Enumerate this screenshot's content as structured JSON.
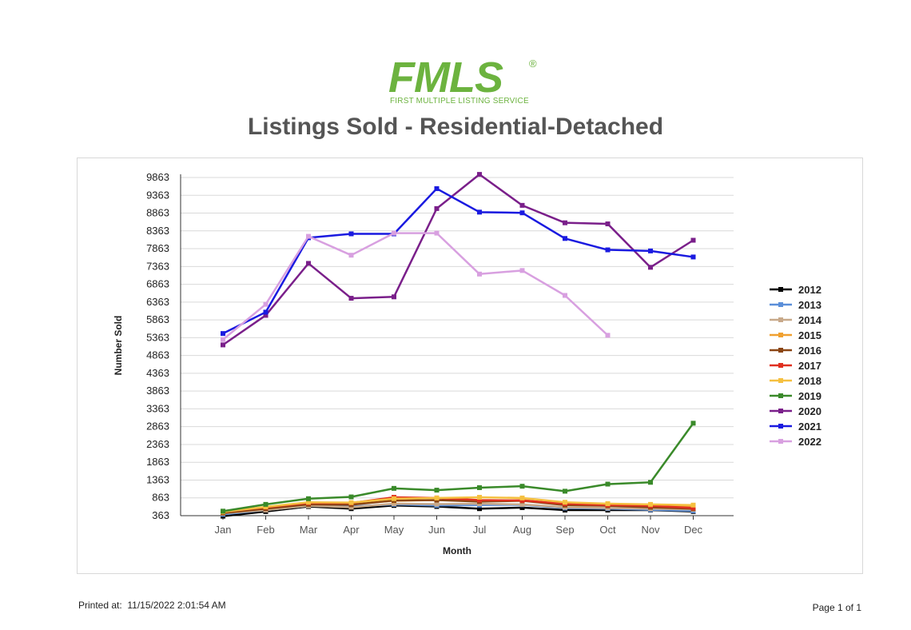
{
  "logo": {
    "wordmark": "FMLS",
    "registered": "®",
    "tagline": "FIRST MULTIPLE LISTING SERVICE"
  },
  "page_title": "Listings Sold - Residential-Detached",
  "footer": {
    "printed_label": "Printed at:",
    "printed_value": "11/15/2022 2:01:54 AM",
    "page": "Page 1 of 1"
  },
  "chart_data": {
    "type": "line",
    "title": "",
    "xlabel": "Month",
    "ylabel": "Number Sold",
    "categories": [
      "Jan",
      "Feb",
      "Mar",
      "Apr",
      "May",
      "Jun",
      "Jul",
      "Aug",
      "Sep",
      "Oct",
      "Nov",
      "Dec"
    ],
    "yticks": [
      363,
      863,
      1363,
      1863,
      2363,
      2863,
      3363,
      3863,
      4363,
      4863,
      5363,
      5863,
      6363,
      6863,
      7363,
      7863,
      8363,
      8863,
      9363,
      9863
    ],
    "ylim": [
      363,
      9863
    ],
    "grid": true,
    "legend_position": "right",
    "series": [
      {
        "name": "2012",
        "color": "#000000",
        "values": [
          350,
          480,
          620,
          560,
          650,
          620,
          560,
          590,
          520,
          520,
          520,
          480
        ]
      },
      {
        "name": "2013",
        "color": "#5b8fd9",
        "values": [
          400,
          520,
          640,
          620,
          680,
          650,
          660,
          670,
          580,
          560,
          530,
          500
        ]
      },
      {
        "name": "2014",
        "color": "#c8a98a",
        "values": [
          430,
          520,
          640,
          600,
          700,
          690,
          700,
          680,
          600,
          580,
          560,
          540
        ]
      },
      {
        "name": "2015",
        "color": "#f0a030",
        "values": [
          440,
          570,
          720,
          690,
          780,
          800,
          780,
          800,
          680,
          670,
          620,
          620
        ]
      },
      {
        "name": "2016",
        "color": "#8b4513",
        "values": [
          440,
          560,
          680,
          670,
          790,
          800,
          760,
          780,
          660,
          640,
          600,
          560
        ]
      },
      {
        "name": "2017",
        "color": "#e03020",
        "values": [
          470,
          600,
          720,
          720,
          880,
          860,
          800,
          790,
          700,
          660,
          640,
          580
        ]
      },
      {
        "name": "2018",
        "color": "#f5c040",
        "values": [
          470,
          610,
          740,
          730,
          840,
          860,
          880,
          860,
          740,
          700,
          680,
          660
        ]
      },
      {
        "name": "2019",
        "color": "#3a8a2a",
        "values": [
          490,
          680,
          840,
          890,
          1130,
          1080,
          1150,
          1190,
          1050,
          1250,
          1300,
          2960
        ]
      },
      {
        "name": "2020",
        "color": "#7a1f8a",
        "values": [
          5160,
          5990,
          7450,
          6470,
          6510,
          8990,
          9950,
          9080,
          8590,
          8560,
          7340,
          8100
        ]
      },
      {
        "name": "2021",
        "color": "#1a1ae0",
        "values": [
          5480,
          6080,
          8170,
          8280,
          8280,
          9550,
          8890,
          8870,
          8150,
          7830,
          7800,
          7630
        ]
      },
      {
        "name": "2022",
        "color": "#d8a0e0",
        "values": [
          5310,
          6300,
          8210,
          7680,
          8300,
          8300,
          7150,
          7250,
          6550,
          5430,
          null,
          null
        ]
      }
    ]
  }
}
